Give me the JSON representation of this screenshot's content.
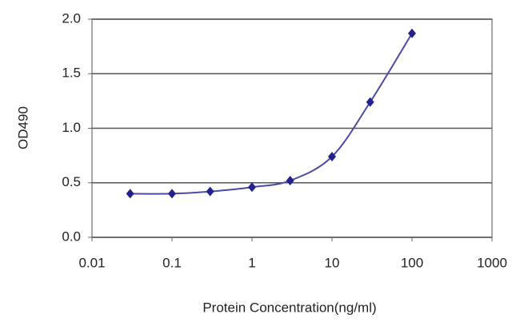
{
  "chart_data": {
    "type": "line",
    "xlabel": "Protein Concentration(ng/ml)",
    "ylabel": "OD490",
    "x": [
      0.03,
      0.1,
      0.3,
      1,
      3,
      10,
      30,
      100
    ],
    "values": [
      0.4,
      0.4,
      0.42,
      0.46,
      0.52,
      0.74,
      1.24,
      1.87
    ],
    "xlim": [
      0.01,
      1000
    ],
    "xticks": [
      0.01,
      0.1,
      1,
      10,
      100,
      1000
    ],
    "log_x": true,
    "ylim": [
      0,
      2
    ],
    "yticks": [
      {
        "value": 0,
        "label": "0.0"
      },
      0.5,
      {
        "value": 1,
        "label": "1.0"
      },
      1.5,
      {
        "value": 2,
        "label": "2.0"
      }
    ],
    "grid": true,
    "color": "#4b4ba3",
    "marker_color": "#22228a"
  }
}
